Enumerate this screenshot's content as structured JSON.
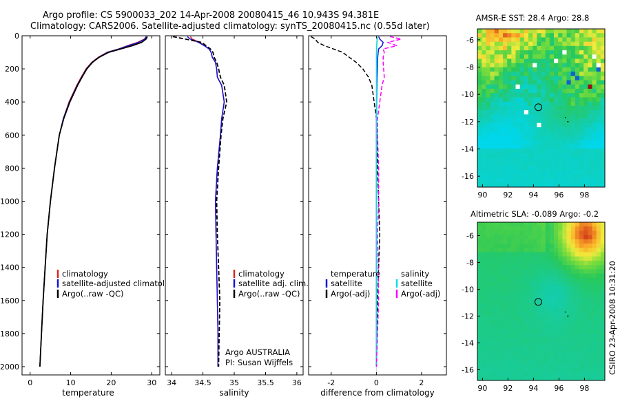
{
  "header": {
    "title_line1": "Argo profile: CS 5900033_202 14-Apr-2008 20080415_46 10.943S 94.381E",
    "title_line2": "Climatology: CARS2006. Satellite-adjusted climatology: synTS_20080415.nc (0.55d later)"
  },
  "colors": {
    "climatology": "#e0231b",
    "satellite": "#1111dd",
    "argo": "#000000",
    "salinity_satellite": "#00e0e0",
    "salinity_argo": "#ff00ff"
  },
  "chart_data": [
    {
      "id": "temperature",
      "type": "line",
      "xlabel": "temperature",
      "xlim": [
        -2,
        32
      ],
      "ylim": [
        0,
        2050
      ],
      "xticks": [
        "0",
        "10",
        "20",
        "30"
      ],
      "yticks": [
        "0",
        "200",
        "400",
        "600",
        "800",
        "1000",
        "1200",
        "1400",
        "1600",
        "1800",
        "2000"
      ],
      "depth": [
        5,
        20,
        40,
        60,
        80,
        100,
        130,
        160,
        200,
        250,
        300,
        400,
        500,
        600,
        800,
        1000,
        1200,
        1400,
        1600,
        1800,
        2000
      ],
      "series": [
        {
          "name": "climatology",
          "color_key": "climatology",
          "dash": "",
          "values": [
            28.6,
            28.2,
            26.5,
            24.0,
            21.8,
            19.0,
            16.8,
            15.2,
            13.8,
            12.6,
            11.5,
            9.6,
            8.2,
            7.2,
            6.0,
            5.0,
            4.2,
            3.7,
            3.2,
            2.8,
            2.4
          ]
        },
        {
          "name": "satellite-adjusted climatology",
          "color_key": "satellite",
          "dash": "",
          "values": [
            28.7,
            28.3,
            26.8,
            24.3,
            21.9,
            19.1,
            16.9,
            15.3,
            13.9,
            12.7,
            11.6,
            9.7,
            8.2,
            7.2,
            6.0,
            5.0,
            4.2,
            3.7,
            3.2,
            2.8,
            2.4
          ]
        },
        {
          "name": "Argo(..raw -QC)",
          "color_key": "argo",
          "dash": "",
          "values": [
            28.9,
            28.6,
            27.5,
            25.2,
            22.3,
            19.4,
            17.0,
            15.4,
            14.0,
            12.8,
            11.7,
            9.8,
            8.3,
            7.2,
            6.0,
            5.0,
            4.2,
            3.7,
            3.2,
            2.8,
            2.4
          ]
        }
      ],
      "legend": [
        "climatology",
        "satellite-adjusted climatology",
        "Argo(..raw -QC)"
      ]
    },
    {
      "id": "salinity",
      "type": "line",
      "xlabel": "salinity",
      "xlim": [
        33.9,
        36.1
      ],
      "ylim": [
        0,
        2050
      ],
      "xticks": [
        "34",
        "34.5",
        "35",
        "35.5",
        "36"
      ],
      "depth": [
        5,
        20,
        40,
        60,
        80,
        100,
        130,
        160,
        200,
        250,
        300,
        400,
        500,
        600,
        800,
        1000,
        1200,
        1400,
        1600,
        1800,
        2000
      ],
      "series": [
        {
          "name": "climatology",
          "color_key": "climatology",
          "dash": "",
          "values": [
            34.3,
            34.33,
            34.45,
            34.53,
            34.6,
            34.63,
            34.65,
            34.7,
            34.72,
            34.73,
            34.8,
            34.84,
            34.8,
            34.78,
            34.73,
            34.7,
            34.71,
            34.72,
            34.73,
            34.74,
            34.74
          ]
        },
        {
          "name": "satellite adj. clim.",
          "color_key": "satellite",
          "dash": "",
          "values": [
            34.25,
            34.3,
            34.43,
            34.52,
            34.6,
            34.63,
            34.65,
            34.7,
            34.72,
            34.73,
            34.8,
            34.84,
            34.8,
            34.78,
            34.73,
            34.7,
            34.71,
            34.72,
            34.73,
            34.74,
            34.74
          ]
        },
        {
          "name": "Argo(..raw -QC)",
          "color_key": "argo",
          "dash": "6,3",
          "values": [
            34.02,
            34.22,
            34.48,
            34.55,
            34.62,
            34.66,
            34.68,
            34.72,
            34.75,
            34.78,
            34.84,
            34.88,
            34.82,
            34.79,
            34.75,
            34.72,
            34.73,
            34.75,
            34.77,
            34.76,
            34.75
          ]
        }
      ],
      "legend": [
        "climatology",
        "satellite adj. clim.",
        "Argo(..raw -QC)"
      ],
      "annotation": [
        "Argo AUSTRALIA",
        "PI: Susan Wijffels"
      ]
    },
    {
      "id": "difference",
      "type": "line",
      "xlabel": "difference from climatology",
      "xlim": [
        -3,
        3.1
      ],
      "ylim": [
        0,
        2050
      ],
      "xticks": [
        "-2",
        "0",
        "2"
      ],
      "depth": [
        5,
        20,
        40,
        60,
        80,
        100,
        130,
        160,
        200,
        250,
        300,
        400,
        500,
        600,
        800,
        1000,
        1200,
        1400,
        1600,
        1800,
        2000
      ],
      "series": [
        {
          "name": "temperature satellite",
          "color_key": "satellite",
          "dash": "",
          "values": [
            0.1,
            0.15,
            0.3,
            0.25,
            0.1,
            0.08,
            0.06,
            0.05,
            0.04,
            0.03,
            0.02,
            0.01,
            0,
            0,
            0,
            0,
            0,
            0,
            0,
            0,
            0
          ]
        },
        {
          "name": "temperature Argo(-adj)",
          "color_key": "argo",
          "dash": "6,3",
          "values": [
            -2.9,
            -2.7,
            -2.6,
            -2.3,
            -1.9,
            -1.5,
            -1.2,
            -0.9,
            -0.6,
            -0.35,
            -0.2,
            -0.1,
            0.0,
            0.03,
            0.05,
            0.1,
            0.15,
            0.1,
            0.05,
            0.02,
            0
          ]
        },
        {
          "name": "salinity satellite",
          "color_key": "salinity_satellite",
          "dash": "",
          "values": [
            0.05,
            0.05,
            0.03,
            0.02,
            0.01,
            0,
            0,
            0,
            0,
            0,
            0,
            0,
            0,
            0,
            0,
            0,
            0,
            0,
            0,
            0,
            0
          ]
        },
        {
          "name": "salinity Argo(-adj)",
          "color_key": "salinity_argo",
          "dash": "6,3",
          "values": [
            0.6,
            1.1,
            0.5,
            0.9,
            0.3,
            0.35,
            0.3,
            0.3,
            0.32,
            0.35,
            0.25,
            0.15,
            0.05,
            0.05,
            0.1,
            0.1,
            0.05,
            0.08,
            0.1,
            0.05,
            0.0
          ]
        }
      ],
      "legend_temperature": {
        "title": "temperature",
        "items": [
          "satellite",
          "Argo(-adj)"
        ]
      },
      "legend_salinity": {
        "title": "salinity",
        "items": [
          "satellite",
          "Argo(-adj)"
        ]
      }
    },
    {
      "id": "sst_map",
      "type": "heatmap",
      "title": "AMSR-E SST: 28.4 Argo: 28.8",
      "xlim": [
        89.6,
        99.6
      ],
      "ylim": [
        -16.8,
        -5.2
      ],
      "xticks": [
        "90",
        "92",
        "94",
        "96",
        "98"
      ],
      "yticks": [
        "-6",
        "-8",
        "-10",
        "-12",
        "-14",
        "-16"
      ],
      "marker": [
        94.381,
        -10.943
      ]
    },
    {
      "id": "sla_map",
      "type": "heatmap",
      "title": "Altimetric SLA: -0.089 Argo: -0.2",
      "xlim": [
        89.6,
        99.6
      ],
      "ylim": [
        -16.8,
        -5.0
      ],
      "xticks": [
        "90",
        "92",
        "94",
        "96",
        "98"
      ],
      "yticks": [
        "-6",
        "-8",
        "-10",
        "-12",
        "-14",
        "-16"
      ],
      "marker": [
        94.381,
        -10.943
      ]
    }
  ],
  "footer": {
    "credit": "CSIRO 23-Apr-2008 10:31:20"
  }
}
